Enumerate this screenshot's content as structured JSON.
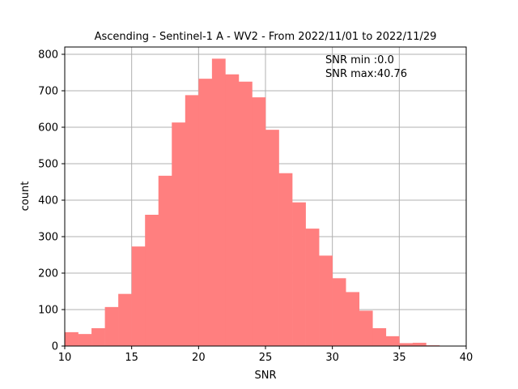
{
  "chart_data": {
    "type": "bar",
    "title": "Ascending - Sentinel-1 A - WV2 - From 2022/11/01 to 2022/11/29",
    "xlabel": "SNR",
    "ylabel": "count",
    "xlim": [
      10,
      40
    ],
    "ylim": [
      0,
      820
    ],
    "xticks": [
      10,
      15,
      20,
      25,
      30,
      35,
      40
    ],
    "yticks": [
      0,
      100,
      200,
      300,
      400,
      500,
      600,
      700,
      800
    ],
    "grid": true,
    "color": "#ff7f7f",
    "bin_edges": [
      10,
      11,
      12,
      13,
      14,
      15,
      16,
      17,
      18,
      19,
      20,
      21,
      22,
      23,
      24,
      25,
      26,
      27,
      28,
      29,
      30,
      31,
      32,
      33,
      34,
      35,
      36,
      37,
      38
    ],
    "values": [
      38,
      33,
      49,
      107,
      143,
      273,
      360,
      467,
      613,
      688,
      733,
      788,
      745,
      725,
      682,
      593,
      474,
      394,
      322,
      248,
      186,
      148,
      97,
      49,
      27,
      8,
      9,
      2
    ],
    "annotations": [
      "SNR min :0.0",
      "SNR max:40.76"
    ]
  }
}
